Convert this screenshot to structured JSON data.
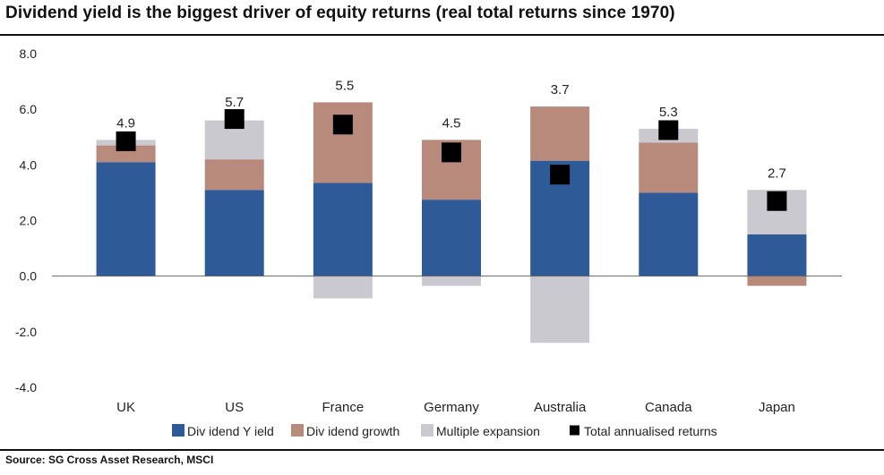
{
  "title": "Dividend yield is the biggest driver of equity returns (real total returns since 1970)",
  "source": "Source: SG Cross Asset Research, MSCI",
  "chart_data": {
    "type": "bar",
    "stacked": true,
    "categories": [
      "UK",
      "US",
      "France",
      "Germany",
      "Australia",
      "Canada",
      "Japan"
    ],
    "series": [
      {
        "name": "Div idend Y ield",
        "color": "#2e5b97",
        "values": [
          4.1,
          3.1,
          3.35,
          2.75,
          4.15,
          3.0,
          1.5
        ]
      },
      {
        "name": "Div idend growth",
        "color": "#b88a7c",
        "values": [
          0.6,
          1.1,
          2.9,
          2.15,
          1.95,
          1.8,
          -0.35
        ]
      },
      {
        "name": "Multiple expansion",
        "color": "#c9c9cf",
        "values": [
          0.2,
          1.4,
          -0.8,
          -0.35,
          -2.4,
          0.5,
          1.6
        ]
      }
    ],
    "total": {
      "name": "Total annualised  returns",
      "color": "#000000",
      "values": [
        4.85,
        5.65,
        5.45,
        4.45,
        3.65,
        5.25,
        2.7
      ],
      "labels": [
        "4.9",
        "5.7",
        "5.5",
        "4.5",
        "3.7",
        "5.3",
        "2.7"
      ]
    },
    "ylim": [
      -4.0,
      8.0
    ],
    "yticks": [
      "8.0",
      "6.0",
      "4.0",
      "2.0",
      "0.0",
      "-2.0",
      "-4.0"
    ],
    "xlabel": "",
    "ylabel": "",
    "legend_position": "bottom",
    "grid": false
  }
}
